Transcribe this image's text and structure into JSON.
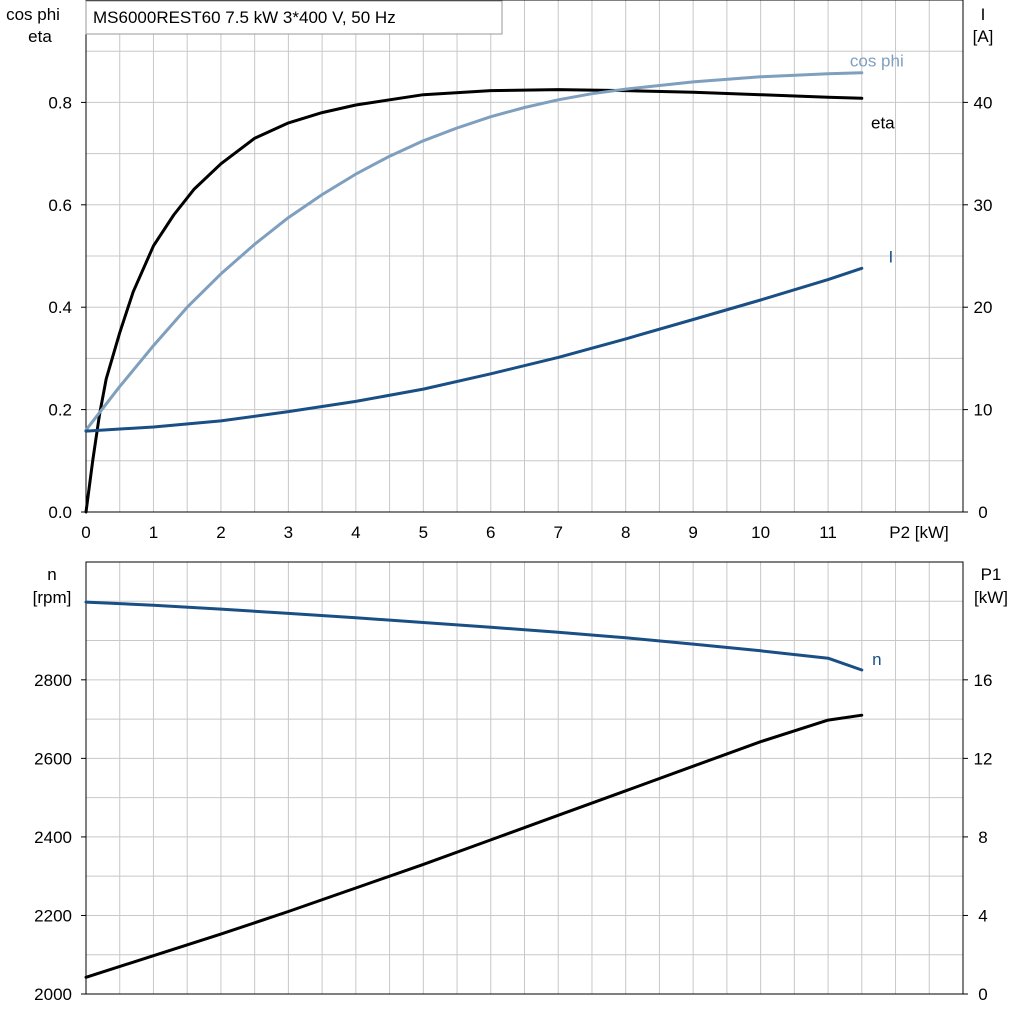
{
  "colors": {
    "eta": "#000000",
    "cos_phi": "#7f9fbf",
    "I": "#1a4f86",
    "n": "#1a4f86",
    "P1": "#000000",
    "grid": "#c8c8c8"
  },
  "chart_data": [
    {
      "type": "line",
      "title": "MS6000REST60   7.5 kW   3*400 V, 50 Hz",
      "xlabel": "P2 [kW]",
      "xlim": [
        0,
        13
      ],
      "x_ticks": [
        "0",
        "1",
        "2",
        "3",
        "4",
        "5",
        "6",
        "7",
        "8",
        "9",
        "10",
        "11"
      ],
      "ylabel_left": [
        "cos phi",
        "eta"
      ],
      "ylim_left": [
        0,
        1.0
      ],
      "y_ticks_left": [
        "0.0",
        "0.2",
        "0.4",
        "0.6",
        "0.8"
      ],
      "ylabel_right": [
        "I",
        "[A]"
      ],
      "ylim_right": [
        0,
        50
      ],
      "y_ticks_right": [
        "0",
        "10",
        "20",
        "30",
        "40"
      ],
      "grid": true,
      "series": [
        {
          "name": "eta",
          "axis": "left",
          "color_key": "eta",
          "x": [
            0,
            0.1,
            0.2,
            0.3,
            0.5,
            0.7,
            1.0,
            1.3,
            1.6,
            2.0,
            2.5,
            3.0,
            3.5,
            4.0,
            5.0,
            6.0,
            7.0,
            8.0,
            9.0,
            10.0,
            11.0,
            11.5
          ],
          "y": [
            0.0,
            0.1,
            0.19,
            0.26,
            0.35,
            0.43,
            0.52,
            0.58,
            0.63,
            0.68,
            0.73,
            0.76,
            0.78,
            0.795,
            0.815,
            0.823,
            0.825,
            0.823,
            0.82,
            0.815,
            0.81,
            0.808
          ]
        },
        {
          "name": "cos phi",
          "axis": "left",
          "color_key": "cos_phi",
          "x": [
            0,
            0.5,
            1.0,
            1.5,
            2.0,
            2.5,
            3.0,
            3.5,
            4.0,
            4.5,
            5.0,
            5.5,
            6.0,
            6.5,
            7.0,
            7.5,
            8.0,
            9.0,
            10.0,
            11.0,
            11.5
          ],
          "y": [
            0.16,
            0.245,
            0.325,
            0.4,
            0.465,
            0.523,
            0.575,
            0.62,
            0.66,
            0.695,
            0.725,
            0.75,
            0.772,
            0.79,
            0.805,
            0.817,
            0.826,
            0.84,
            0.85,
            0.856,
            0.858
          ]
        },
        {
          "name": "I",
          "axis": "right",
          "color_key": "I",
          "x": [
            0,
            1,
            2,
            3,
            4,
            5,
            6,
            7,
            8,
            9,
            10,
            11,
            11.5
          ],
          "y": [
            7.9,
            8.3,
            8.9,
            9.8,
            10.8,
            12.0,
            13.5,
            15.1,
            16.9,
            18.8,
            20.7,
            22.7,
            23.8
          ]
        }
      ],
      "series_labels": [
        "cos phi",
        "eta",
        "I"
      ]
    },
    {
      "type": "line",
      "xlim": [
        0,
        13
      ],
      "ylabel_left": [
        "n",
        "[rpm]"
      ],
      "ylim_left": [
        2000,
        3100
      ],
      "y_ticks_left": [
        "2000",
        "2200",
        "2400",
        "2600",
        "2800"
      ],
      "ylabel_right": [
        "P1",
        "[kW]"
      ],
      "ylim_right": [
        0,
        22
      ],
      "y_ticks_right": [
        "0",
        "4",
        "8",
        "12",
        "16"
      ],
      "grid": true,
      "series": [
        {
          "name": "n",
          "axis": "left",
          "color_key": "n",
          "x": [
            0,
            1,
            2,
            3,
            4,
            5,
            6,
            7,
            8,
            9,
            10,
            11,
            11.5
          ],
          "y": [
            2998,
            2990,
            2980,
            2969,
            2958,
            2946,
            2934,
            2921,
            2907,
            2891,
            2874,
            2855,
            2825
          ]
        },
        {
          "name": "P1",
          "axis": "right",
          "color_key": "P1",
          "x": [
            0,
            1,
            2,
            3,
            4,
            5,
            6,
            7,
            8,
            9,
            10,
            11,
            11.5
          ],
          "y": [
            0.85,
            1.95,
            3.05,
            4.2,
            5.4,
            6.6,
            7.85,
            9.1,
            10.35,
            11.6,
            12.85,
            13.95,
            14.2
          ]
        }
      ],
      "series_labels": [
        "n"
      ]
    }
  ]
}
